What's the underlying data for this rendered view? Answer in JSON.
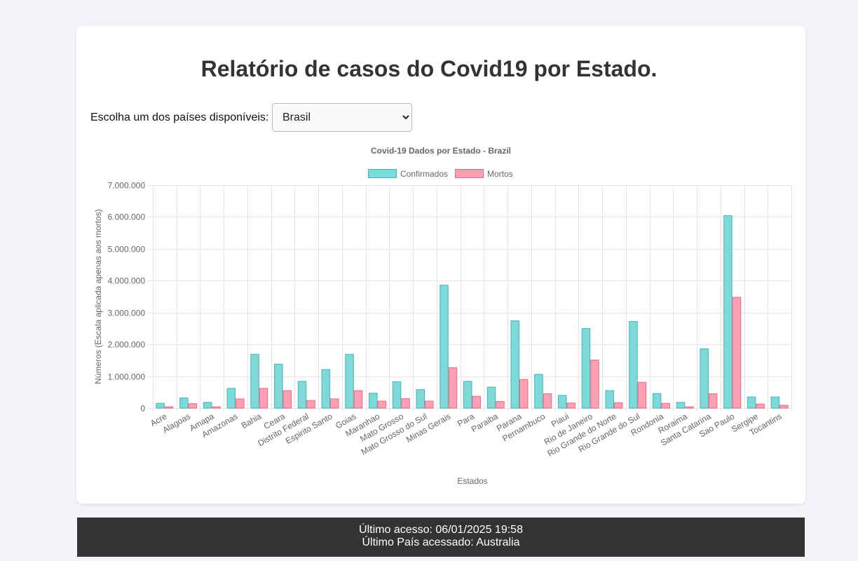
{
  "page": {
    "title": "Relatório de casos do Covid19 por Estado.",
    "country_label": "Escolha um dos países disponíveis:",
    "country_selected": "Brasil"
  },
  "footer": {
    "last_access": "Último acesso: 06/01/2025 19:58",
    "last_country": "Último País acessado: Australia"
  },
  "colors": {
    "confirmed_fill": "#7fd9d9",
    "confirmed_stroke": "#3fb7b7",
    "deaths_fill": "#ff9fb3",
    "deaths_stroke": "#e86a86"
  },
  "chart_data": {
    "type": "bar",
    "title": "Covid-19 Dados por Estado - Brazil",
    "xlabel": "Estados",
    "ylabel": "Números (Escala aplicada apenas aos mortos)",
    "ylim": [
      0,
      7000000
    ],
    "yticks": [
      0,
      1000000,
      2000000,
      3000000,
      4000000,
      5000000,
      6000000,
      7000000
    ],
    "ytick_labels": [
      "0",
      "1.000.000",
      "2.000.000",
      "3.000.000",
      "4.000.000",
      "5.000.000",
      "6.000.000",
      "7.000.000"
    ],
    "grid": true,
    "legend_position": "top",
    "categories": [
      "Acre",
      "Alagoas",
      "Amapa",
      "Amazonas",
      "Bahia",
      "Ceara",
      "Distrito Federal",
      "Espirito Santo",
      "Goias",
      "Maranhao",
      "Mato Grosso",
      "Mato Grosso do Sul",
      "Minas Gerais",
      "Para",
      "Paraiba",
      "Parana",
      "Pernambuco",
      "Piaui",
      "Rio de Janeiro",
      "Rio Grande do Norte",
      "Rio Grande do Sul",
      "Rondonia",
      "Roraima",
      "Santa Catarina",
      "Sao Paulo",
      "Sergipe",
      "Tocantins"
    ],
    "series": [
      {
        "name": "Confirmados",
        "values": [
          150000,
          320000,
          180000,
          620000,
          1690000,
          1380000,
          840000,
          1210000,
          1690000,
          470000,
          830000,
          580000,
          3860000,
          840000,
          660000,
          2740000,
          1060000,
          400000,
          2500000,
          550000,
          2720000,
          460000,
          180000,
          1860000,
          6040000,
          350000,
          350000
        ]
      },
      {
        "name": "Mortos",
        "values": [
          40000,
          140000,
          40000,
          290000,
          620000,
          550000,
          240000,
          290000,
          550000,
          220000,
          300000,
          220000,
          1270000,
          370000,
          210000,
          900000,
          450000,
          160000,
          1510000,
          170000,
          810000,
          150000,
          40000,
          450000,
          3480000,
          130000,
          90000
        ]
      }
    ]
  }
}
